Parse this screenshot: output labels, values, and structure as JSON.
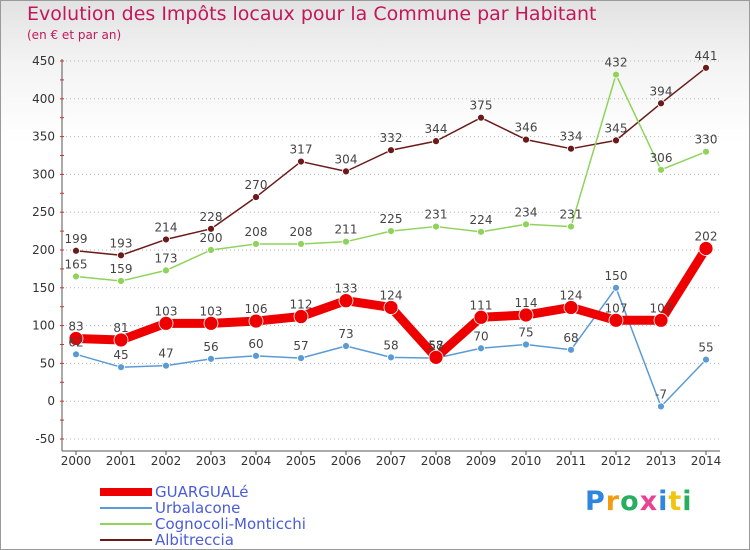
{
  "chart_data": {
    "type": "line",
    "title": "Evolution des Impôts locaux pour la Commune par Habitant",
    "subtitle": "(en € et par an)",
    "x": [
      "2000",
      "2001",
      "2002",
      "2003",
      "2004",
      "2005",
      "2006",
      "2007",
      "2008",
      "2009",
      "2010",
      "2011",
      "2012",
      "2013",
      "2014"
    ],
    "yticks": [
      "450",
      "400",
      "350",
      "300",
      "250",
      "200",
      "150",
      "100",
      "50",
      "0",
      "-50"
    ],
    "ylim": [
      -50,
      450
    ],
    "grid": "horizontal dotted",
    "legend_position": "bottom-left",
    "series": [
      {
        "name": "GUARGUALé",
        "color": "#ee0000",
        "values": [
          83,
          81,
          103,
          103,
          106,
          112,
          133,
          124,
          58,
          111,
          114,
          124,
          107,
          107,
          202
        ]
      },
      {
        "name": "Urbalacone",
        "color": "#5b9bd5",
        "values": [
          62,
          45,
          47,
          56,
          60,
          57,
          73,
          58,
          57,
          70,
          75,
          68,
          150,
          -7,
          55
        ]
      },
      {
        "name": "Cognocoli-Monticchi",
        "color": "#8fd35c",
        "values": [
          165,
          159,
          173,
          200,
          208,
          208,
          211,
          225,
          231,
          224,
          234,
          231,
          432,
          306,
          330
        ]
      },
      {
        "name": "Albitreccia",
        "color": "#6b1a1a",
        "values": [
          199,
          193,
          214,
          228,
          270,
          317,
          304,
          332,
          344,
          375,
          346,
          334,
          345,
          394,
          441
        ]
      }
    ]
  },
  "logo": {
    "text": "Proxiti",
    "colors": [
      "#2e86de",
      "#f39c12",
      "#27ae60",
      "#e84393",
      "#2e86de",
      "#f1c40f",
      "#27ae60"
    ]
  }
}
